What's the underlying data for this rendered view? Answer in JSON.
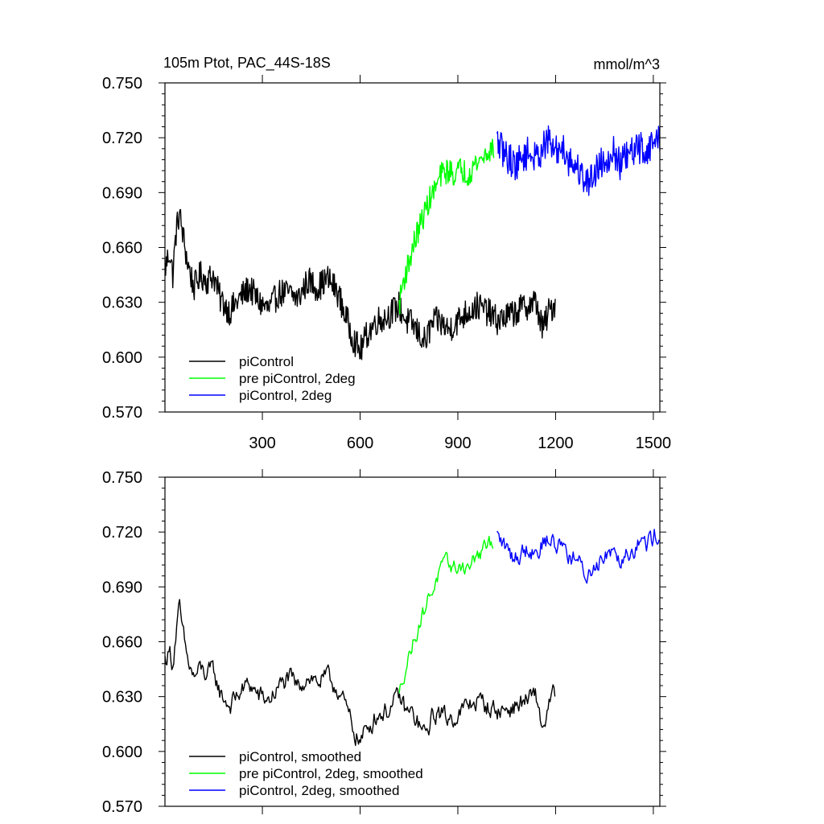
{
  "colors": {
    "piControl": "#000000",
    "pre_piControl_2deg": "#00ff00",
    "piControl_2deg": "#0000ff",
    "axis": "#000000",
    "background": "#ffffff"
  },
  "chart_data": [
    {
      "type": "line",
      "panel": "top",
      "title": "105m Ptot, PAC_44S-18S",
      "units": "mmol/m^3",
      "xlim": [
        1,
        1520
      ],
      "ylim": [
        0.57,
        0.75
      ],
      "xticks": [
        300,
        600,
        900,
        1200,
        1500
      ],
      "xtick_labels": [
        "300",
        "600",
        "900",
        "1200",
        "1500"
      ],
      "yticks": [
        0.57,
        0.6,
        0.63,
        0.66,
        0.69,
        0.72,
        0.75
      ],
      "ytick_labels": [
        "0.570",
        "0.600",
        "0.630",
        "0.660",
        "0.690",
        "0.720",
        "0.750"
      ],
      "legend_position": "bottom-left",
      "legend": [
        "piControl",
        "pre piControl, 2deg",
        "piControl, 2deg"
      ],
      "series": [
        {
          "name": "piControl",
          "color_key": "piControl",
          "noise": 0.008,
          "x": [
            1,
            15,
            25,
            35,
            45,
            55,
            70,
            90,
            110,
            130,
            150,
            170,
            200,
            230,
            260,
            290,
            320,
            350,
            380,
            410,
            440,
            470,
            500,
            530,
            560,
            580,
            600,
            620,
            650,
            680,
            700,
            720,
            740,
            760,
            780,
            800,
            820,
            840,
            870,
            900,
            930,
            960,
            990,
            1020,
            1050,
            1080,
            1110,
            1140,
            1160,
            1180,
            1200
          ],
          "y": [
            0.648,
            0.658,
            0.645,
            0.668,
            0.679,
            0.668,
            0.652,
            0.638,
            0.645,
            0.642,
            0.645,
            0.632,
            0.625,
            0.632,
            0.638,
            0.63,
            0.626,
            0.635,
            0.635,
            0.632,
            0.642,
            0.638,
            0.643,
            0.636,
            0.62,
            0.61,
            0.603,
            0.612,
            0.62,
            0.622,
            0.625,
            0.628,
            0.62,
            0.618,
            0.613,
            0.608,
            0.618,
            0.62,
            0.615,
            0.62,
            0.625,
            0.628,
            0.625,
            0.62,
            0.622,
            0.625,
            0.628,
            0.63,
            0.615,
            0.625,
            0.63
          ]
        },
        {
          "name": "pre piControl, 2deg",
          "color_key": "pre_piControl_2deg",
          "noise": 0.007,
          "x": [
            720,
            730,
            750,
            770,
            790,
            810,
            830,
            850,
            870,
            890,
            910,
            930,
            950,
            970,
            990,
            1010
          ],
          "y": [
            0.628,
            0.64,
            0.652,
            0.665,
            0.675,
            0.685,
            0.692,
            0.7,
            0.702,
            0.7,
            0.703,
            0.7,
            0.705,
            0.708,
            0.712,
            0.715
          ]
        },
        {
          "name": "piControl, 2deg",
          "color_key": "piControl_2deg",
          "noise": 0.009,
          "x": [
            1020,
            1040,
            1060,
            1080,
            1100,
            1120,
            1140,
            1160,
            1180,
            1200,
            1220,
            1240,
            1260,
            1280,
            1300,
            1320,
            1340,
            1360,
            1380,
            1400,
            1420,
            1440,
            1460,
            1480,
            1500,
            1520
          ],
          "y": [
            0.718,
            0.712,
            0.708,
            0.705,
            0.71,
            0.712,
            0.708,
            0.715,
            0.718,
            0.712,
            0.716,
            0.708,
            0.705,
            0.7,
            0.695,
            0.702,
            0.706,
            0.71,
            0.712,
            0.705,
            0.71,
            0.712,
            0.715,
            0.712,
            0.718,
            0.72
          ]
        }
      ]
    },
    {
      "type": "line",
      "panel": "bottom",
      "xlim": [
        1,
        1520
      ],
      "ylim": [
        0.57,
        0.75
      ],
      "xticks": [
        300,
        600,
        900,
        1200,
        1500
      ],
      "yticks": [
        0.57,
        0.6,
        0.63,
        0.66,
        0.69,
        0.72,
        0.75
      ],
      "ytick_labels": [
        "0.570",
        "0.600",
        "0.630",
        "0.660",
        "0.690",
        "0.720",
        "0.750"
      ],
      "legend_position": "bottom-left",
      "legend": [
        "piControl, smoothed",
        "pre piControl, 2deg, smoothed",
        "piControl, 2deg, smoothed"
      ],
      "series": [
        {
          "name": "piControl, smoothed",
          "color_key": "piControl",
          "noise": 0.005,
          "x": [
            1,
            15,
            25,
            35,
            45,
            55,
            70,
            90,
            110,
            130,
            150,
            170,
            200,
            230,
            260,
            290,
            320,
            350,
            380,
            410,
            440,
            470,
            500,
            530,
            560,
            580,
            600,
            620,
            650,
            680,
            700,
            720,
            740,
            760,
            780,
            800,
            820,
            840,
            870,
            900,
            930,
            960,
            990,
            1020,
            1050,
            1080,
            1110,
            1140,
            1160,
            1180,
            1200
          ],
          "y": [
            0.65,
            0.655,
            0.648,
            0.665,
            0.678,
            0.665,
            0.65,
            0.64,
            0.645,
            0.642,
            0.644,
            0.632,
            0.625,
            0.632,
            0.637,
            0.63,
            0.628,
            0.635,
            0.64,
            0.635,
            0.642,
            0.638,
            0.64,
            0.635,
            0.622,
            0.612,
            0.605,
            0.612,
            0.62,
            0.622,
            0.625,
            0.63,
            0.622,
            0.62,
            0.615,
            0.608,
            0.618,
            0.622,
            0.618,
            0.62,
            0.625,
            0.628,
            0.625,
            0.622,
            0.623,
            0.625,
            0.628,
            0.63,
            0.612,
            0.625,
            0.633
          ]
        },
        {
          "name": "pre piControl, 2deg, smoothed",
          "color_key": "pre_piControl_2deg",
          "noise": 0.004,
          "x": [
            720,
            730,
            750,
            770,
            790,
            810,
            830,
            850,
            870,
            890,
            910,
            930,
            950,
            970,
            990,
            1010
          ],
          "y": [
            0.63,
            0.64,
            0.652,
            0.664,
            0.674,
            0.684,
            0.692,
            0.7,
            0.703,
            0.7,
            0.702,
            0.7,
            0.705,
            0.708,
            0.712,
            0.715
          ]
        },
        {
          "name": "piControl, 2deg, smoothed",
          "color_key": "piControl_2deg",
          "noise": 0.005,
          "x": [
            1020,
            1040,
            1060,
            1080,
            1100,
            1120,
            1140,
            1160,
            1180,
            1200,
            1220,
            1240,
            1260,
            1280,
            1300,
            1320,
            1340,
            1360,
            1380,
            1400,
            1420,
            1440,
            1460,
            1480,
            1500,
            1520
          ],
          "y": [
            0.718,
            0.713,
            0.708,
            0.706,
            0.71,
            0.712,
            0.709,
            0.714,
            0.717,
            0.712,
            0.715,
            0.708,
            0.705,
            0.7,
            0.696,
            0.702,
            0.706,
            0.71,
            0.712,
            0.706,
            0.71,
            0.712,
            0.715,
            0.713,
            0.718,
            0.72
          ]
        }
      ]
    }
  ]
}
